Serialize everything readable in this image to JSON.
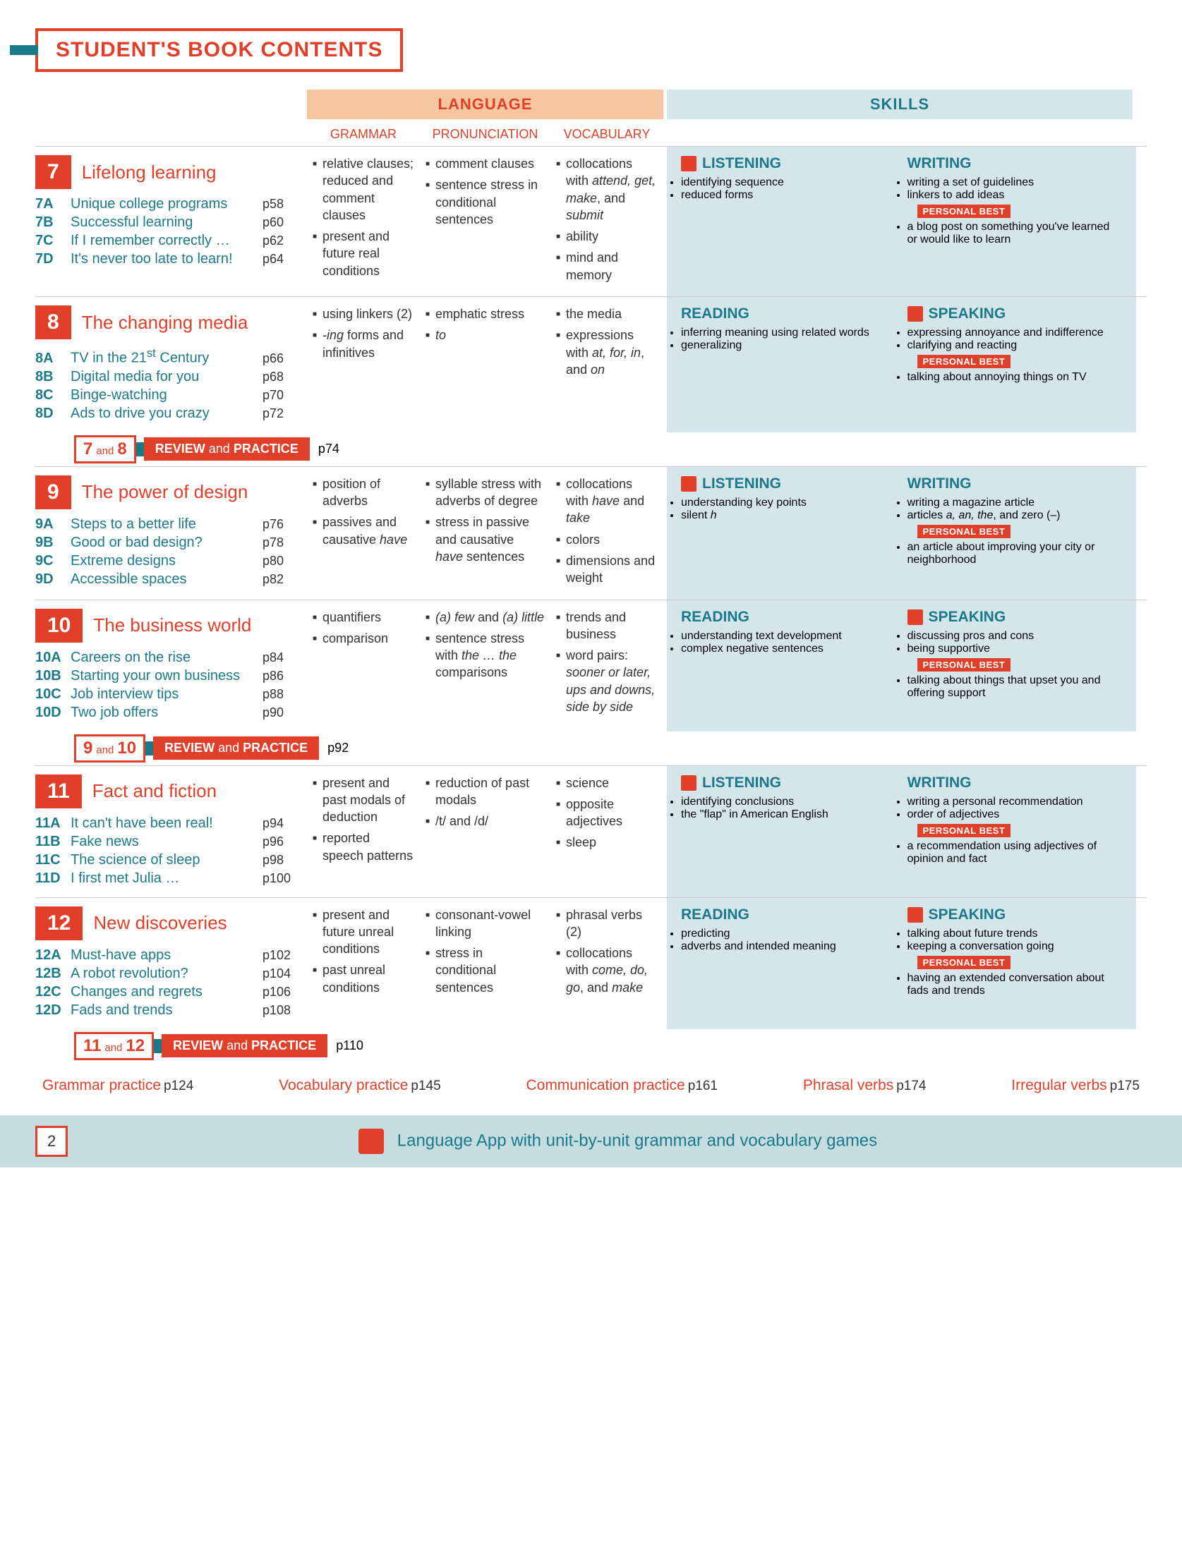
{
  "title": "STUDENT'S BOOK CONTENTS",
  "headers": {
    "language": "LANGUAGE",
    "skills": "SKILLS",
    "grammar": "GRAMMAR",
    "pronunciation": "PRONUNCIATION",
    "vocabulary": "VOCABULARY"
  },
  "personal_best": "PERSONAL BEST",
  "units": [
    {
      "num": "7",
      "title": "Lifelong learning",
      "lessons": [
        {
          "code": "7A",
          "title": "Unique college programs",
          "page": "p58"
        },
        {
          "code": "7B",
          "title": "Successful learning",
          "page": "p60"
        },
        {
          "code": "7C",
          "title": "If I remember correctly …",
          "page": "p62"
        },
        {
          "code": "7D",
          "title": "It's never too late to learn!",
          "page": "p64"
        }
      ],
      "grammar": [
        "relative clauses; reduced and comment clauses",
        "present and future real conditions"
      ],
      "pron": [
        "comment clauses",
        "sentence stress in conditional sentences"
      ],
      "vocab": [
        "collocations with <i>attend, get, make</i>, and <i>submit</i>",
        "ability",
        "mind and memory"
      ],
      "skill1": {
        "icon": true,
        "head": "LISTENING",
        "items": [
          "identifying sequence",
          "reduced forms"
        ]
      },
      "skill2": {
        "head": "WRITING",
        "items": [
          "writing a set of guidelines",
          "linkers to add ideas"
        ],
        "pb": "a blog post on something you've learned or would like to learn"
      }
    },
    {
      "num": "8",
      "title": "The changing media",
      "lessons": [
        {
          "code": "8A",
          "title": "TV in the 21<sup>st</sup> Century",
          "page": "p66"
        },
        {
          "code": "8B",
          "title": "Digital media for you",
          "page": "p68"
        },
        {
          "code": "8C",
          "title": "Binge-watching",
          "page": "p70"
        },
        {
          "code": "8D",
          "title": "Ads to drive you crazy",
          "page": "p72"
        }
      ],
      "grammar": [
        "using linkers (2)",
        "<i>-ing</i> forms and infinitives"
      ],
      "pron": [
        "emphatic stress",
        "<i>to</i>"
      ],
      "vocab": [
        "the media",
        "expressions with <i>at, for, in</i>, and <i>on</i>"
      ],
      "skill1": {
        "head": "READING",
        "items": [
          "inferring meaning using related words",
          "generalizing"
        ]
      },
      "skill2": {
        "icon": true,
        "head": "SPEAKING",
        "items": [
          "expressing annoyance and indifference",
          "clarifying and reacting"
        ],
        "pb": "talking about annoying things on TV"
      }
    },
    {
      "num": "9",
      "title": "The power of design",
      "lessons": [
        {
          "code": "9A",
          "title": "Steps to a better life",
          "page": "p76"
        },
        {
          "code": "9B",
          "title": "Good or bad design?",
          "page": "p78"
        },
        {
          "code": "9C",
          "title": "Extreme designs",
          "page": "p80"
        },
        {
          "code": "9D",
          "title": "Accessible spaces",
          "page": "p82"
        }
      ],
      "grammar": [
        "position of adverbs",
        "passives and causative <i>have</i>"
      ],
      "pron": [
        "syllable stress with adverbs of degree",
        "stress in passive and causative <i>have</i> sentences"
      ],
      "vocab": [
        "collocations with <i>have</i> and <i>take</i>",
        "colors",
        "dimensions and weight"
      ],
      "skill1": {
        "icon": true,
        "head": "LISTENING",
        "items": [
          "understanding key points",
          "silent <i>h</i>"
        ]
      },
      "skill2": {
        "head": "WRITING",
        "items": [
          "writing a magazine article",
          "articles <i>a, an, the</i>, and zero (–)"
        ],
        "pb": "an article about improving your city or neighborhood"
      }
    },
    {
      "num": "10",
      "title": "The business world",
      "lessons": [
        {
          "code": "10A",
          "title": "Careers on the rise",
          "page": "p84"
        },
        {
          "code": "10B",
          "title": "Starting your own business",
          "page": "p86"
        },
        {
          "code": "10C",
          "title": "Job interview tips",
          "page": "p88"
        },
        {
          "code": "10D",
          "title": "Two job offers",
          "page": "p90"
        }
      ],
      "grammar": [
        "quantifiers",
        "comparison"
      ],
      "pron": [
        "<i>(a) few</i> and <i>(a) little</i>",
        "sentence stress with <i>the … the</i> comparisons"
      ],
      "vocab": [
        "trends and business",
        "word pairs: <i>sooner or later, ups and downs, side by side</i>"
      ],
      "skill1": {
        "head": "READING",
        "items": [
          "understanding text development",
          "complex negative sentences"
        ]
      },
      "skill2": {
        "icon": true,
        "head": "SPEAKING",
        "items": [
          "discussing pros and cons",
          "being supportive"
        ],
        "pb": "talking about things that upset you and offering support"
      }
    },
    {
      "num": "11",
      "title": "Fact and fiction",
      "lessons": [
        {
          "code": "11A",
          "title": "It can't have been real!",
          "page": "p94"
        },
        {
          "code": "11B",
          "title": "Fake news",
          "page": "p96"
        },
        {
          "code": "11C",
          "title": "The science of sleep",
          "page": "p98"
        },
        {
          "code": "11D",
          "title": "I first met Julia …",
          "page": "p100"
        }
      ],
      "grammar": [
        "present and past modals of deduction",
        "reported speech patterns"
      ],
      "pron": [
        "reduction of past modals",
        "/t/ and /d/"
      ],
      "vocab": [
        "science",
        "opposite adjectives",
        "sleep"
      ],
      "skill1": {
        "icon": true,
        "head": "LISTENING",
        "items": [
          "identifying conclusions",
          "the \"flap\" in American English"
        ]
      },
      "skill2": {
        "head": "WRITING",
        "items": [
          "writing a personal recommendation",
          "order of adjectives"
        ],
        "pb": "a recommendation using adjectives of opinion and fact"
      }
    },
    {
      "num": "12",
      "title": "New discoveries",
      "lessons": [
        {
          "code": "12A",
          "title": "Must-have apps",
          "page": "p102"
        },
        {
          "code": "12B",
          "title": "A robot revolution?",
          "page": "p104"
        },
        {
          "code": "12C",
          "title": "Changes and regrets",
          "page": "p106"
        },
        {
          "code": "12D",
          "title": "Fads and trends",
          "page": "p108"
        }
      ],
      "grammar": [
        "present and future unreal conditions",
        "past unreal conditions"
      ],
      "pron": [
        "consonant-vowel linking",
        "stress in conditional sentences"
      ],
      "vocab": [
        "phrasal verbs (2)",
        "collocations with <i>come, do, go</i>, and <i>make</i>"
      ],
      "skill1": {
        "head": "READING",
        "items": [
          "predicting",
          "adverbs and intended meaning"
        ]
      },
      "skill2": {
        "icon": true,
        "head": "SPEAKING",
        "items": [
          "talking about future trends",
          "keeping a conversation going"
        ],
        "pb": "having an extended conversation about fads and trends"
      }
    }
  ],
  "reviews": [
    {
      "after": 1,
      "a": "7",
      "b": "8",
      "page": "p74"
    },
    {
      "after": 3,
      "a": "9",
      "b": "10",
      "page": "p92"
    },
    {
      "after": 5,
      "a": "11",
      "b": "12",
      "page": "p110"
    }
  ],
  "review_label_1": "REVIEW",
  "review_label_2": "and",
  "review_label_3": "PRACTICE",
  "review_and": "and",
  "footer_links": [
    {
      "t": "Grammar practice",
      "p": "p124"
    },
    {
      "t": "Vocabulary practice",
      "p": "p145"
    },
    {
      "t": "Communication practice",
      "p": "p161"
    },
    {
      "t": "Phrasal verbs",
      "p": "p174"
    },
    {
      "t": "Irregular verbs",
      "p": "p175"
    }
  ],
  "page_number": "2",
  "bottom_text": "Language App with unit-by-unit grammar and vocabulary games"
}
